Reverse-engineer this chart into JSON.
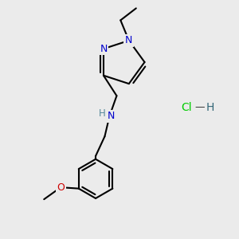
{
  "background_color": "#ebebeb",
  "bond_color": "#000000",
  "bond_width": 1.5,
  "N_color": "#0000cc",
  "O_color": "#cc0000",
  "Cl_color": "#00cc00",
  "H_color": "#336677",
  "figsize": [
    3.0,
    3.0
  ],
  "dpi": 100,
  "xlim": [
    0,
    10
  ],
  "ylim": [
    0,
    10
  ],
  "hcl_x": 8.2,
  "hcl_y": 5.5
}
